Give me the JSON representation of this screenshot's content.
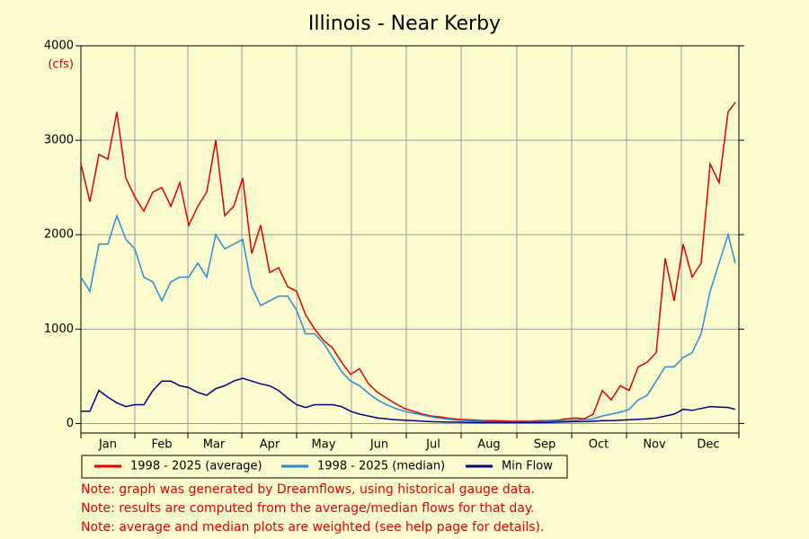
{
  "chart_data": {
    "type": "line",
    "title": "Illinois - Near Kerby",
    "y_label": "(cfs)",
    "x": [
      1,
      6,
      11,
      16,
      21,
      26,
      31,
      36,
      41,
      46,
      51,
      56,
      61,
      66,
      71,
      76,
      81,
      86,
      91,
      96,
      101,
      106,
      111,
      116,
      121,
      126,
      131,
      136,
      141,
      146,
      151,
      156,
      161,
      166,
      171,
      176,
      181,
      186,
      191,
      196,
      201,
      206,
      211,
      216,
      221,
      226,
      231,
      236,
      241,
      246,
      251,
      256,
      261,
      266,
      271,
      276,
      281,
      286,
      291,
      296,
      301,
      306,
      311,
      316,
      321,
      326,
      331,
      336,
      341,
      346,
      351,
      356,
      361,
      365
    ],
    "xlim": [
      1,
      367
    ],
    "xticks": [
      {
        "value": 16,
        "label": "Jan"
      },
      {
        "value": 46,
        "label": "Feb"
      },
      {
        "value": 75,
        "label": "Mar"
      },
      {
        "value": 106,
        "label": "Apr"
      },
      {
        "value": 136,
        "label": "May"
      },
      {
        "value": 167,
        "label": "Jun"
      },
      {
        "value": 197,
        "label": "Jul"
      },
      {
        "value": 228,
        "label": "Aug"
      },
      {
        "value": 259,
        "label": "Sep"
      },
      {
        "value": 289,
        "label": "Oct"
      },
      {
        "value": 320,
        "label": "Nov"
      },
      {
        "value": 350,
        "label": "Dec"
      }
    ],
    "ylim": [
      -100,
      4000
    ],
    "yticks": [
      0,
      1000,
      2000,
      3000,
      4000
    ],
    "grid": true,
    "series": [
      {
        "name": "1998 - 2025 (average)",
        "color": "#e00000",
        "values": [
          2750,
          2350,
          2850,
          2800,
          3300,
          2600,
          2400,
          2250,
          2450,
          2500,
          2300,
          2550,
          2100,
          2300,
          2450,
          3000,
          2200,
          2300,
          2600,
          1800,
          2100,
          1600,
          1650,
          1450,
          1400,
          1150,
          1000,
          880,
          800,
          650,
          520,
          580,
          420,
          330,
          270,
          210,
          160,
          130,
          100,
          80,
          70,
          55,
          45,
          40,
          35,
          30,
          30,
          28,
          25,
          25,
          25,
          30,
          30,
          35,
          50,
          60,
          50,
          100,
          350,
          250,
          400,
          350,
          600,
          650,
          750,
          1750,
          1300,
          1900,
          1550,
          1700,
          2750,
          2550,
          3300,
          3400
        ]
      },
      {
        "name": "1998 - 2025 (median)",
        "color": "#2a8ad8",
        "values": [
          1550,
          1400,
          1900,
          1900,
          2200,
          1950,
          1850,
          1550,
          1500,
          1300,
          1500,
          1550,
          1550,
          1700,
          1550,
          2000,
          1850,
          1900,
          1950,
          1450,
          1250,
          1300,
          1350,
          1350,
          1200,
          950,
          950,
          850,
          700,
          550,
          450,
          400,
          320,
          250,
          200,
          160,
          130,
          110,
          90,
          70,
          55,
          45,
          35,
          30,
          25,
          20,
          18,
          18,
          18,
          18,
          20,
          20,
          25,
          25,
          30,
          35,
          40,
          50,
          80,
          100,
          120,
          150,
          250,
          300,
          450,
          600,
          600,
          700,
          750,
          950,
          1400,
          1700,
          2000,
          1700
        ]
      },
      {
        "name": "Min Flow",
        "color": "#000080",
        "values": [
          130,
          130,
          350,
          280,
          220,
          180,
          200,
          200,
          350,
          450,
          450,
          400,
          380,
          330,
          300,
          370,
          400,
          450,
          480,
          450,
          420,
          400,
          350,
          270,
          200,
          170,
          200,
          200,
          200,
          180,
          130,
          100,
          80,
          60,
          50,
          40,
          35,
          30,
          25,
          20,
          18,
          15,
          15,
          12,
          10,
          10,
          10,
          10,
          10,
          10,
          10,
          10,
          12,
          15,
          18,
          20,
          20,
          25,
          30,
          30,
          35,
          40,
          45,
          50,
          60,
          80,
          100,
          150,
          140,
          160,
          180,
          175,
          170,
          150
        ]
      }
    ],
    "notes": [
      "Note: graph was generated by Dreamflows, using historical gauge data.",
      "Note: results are computed from the average/median flows for that day.",
      "Note: average and median plots are weighted (see help page for details)."
    ]
  }
}
